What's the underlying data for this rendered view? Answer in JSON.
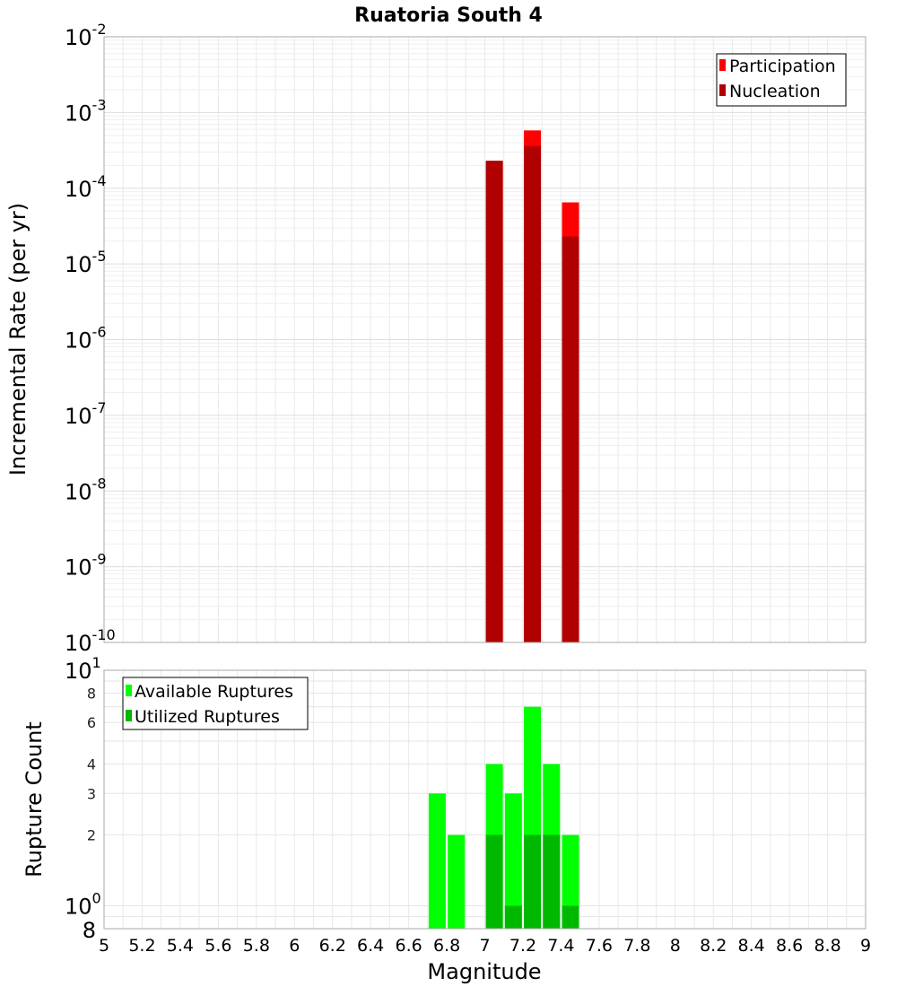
{
  "chart_data": [
    {
      "type": "bar",
      "title": "Ruatoria South 4",
      "ylabel": "Incremental Rate (per yr)",
      "xlabel": "",
      "yscale": "log",
      "ylim": [
        1e-10,
        0.01
      ],
      "xlim": [
        5,
        9
      ],
      "y_ticks": [
        {
          "base": "10",
          "exp": "-10"
        },
        {
          "base": "10",
          "exp": "-9"
        },
        {
          "base": "10",
          "exp": "-8"
        },
        {
          "base": "10",
          "exp": "-7"
        },
        {
          "base": "10",
          "exp": "-6"
        },
        {
          "base": "10",
          "exp": "-5"
        },
        {
          "base": "10",
          "exp": "-4"
        },
        {
          "base": "10",
          "exp": "-3"
        },
        {
          "base": "10",
          "exp": "-2"
        }
      ],
      "legend_position": "top-right",
      "series": [
        {
          "name": "Participation",
          "color": "#ff0000",
          "x": [
            7.05,
            7.25,
            7.45
          ],
          "values": [
            0.00023,
            0.00058,
            6.5e-05
          ]
        },
        {
          "name": "Nucleation",
          "color": "#b00000",
          "x": [
            7.05,
            7.25,
            7.45
          ],
          "values": [
            0.00023,
            0.00036,
            2.3e-05
          ]
        }
      ]
    },
    {
      "type": "bar",
      "title": "",
      "ylabel": "Rupture Count",
      "xlabel": "Magnitude",
      "yscale": "log",
      "ylim": [
        0.8,
        10
      ],
      "xlim": [
        5,
        9
      ],
      "y_ticks_major": [
        {
          "base": "10",
          "exp": "0",
          "value": 1
        },
        {
          "base": "10",
          "exp": "1",
          "value": 10
        }
      ],
      "y_tick_bottom": {
        "label": "8",
        "value": 0.8
      },
      "y_ticks_minor": [
        {
          "label": "2",
          "value": 2
        },
        {
          "label": "3",
          "value": 3
        },
        {
          "label": "4",
          "value": 4
        },
        {
          "label": "6",
          "value": 6
        },
        {
          "label": "8",
          "value": 8
        }
      ],
      "x_ticks": [
        "5",
        "5.2",
        "5.4",
        "5.6",
        "5.8",
        "6",
        "6.2",
        "6.4",
        "6.6",
        "6.8",
        "7",
        "7.2",
        "7.4",
        "7.6",
        "7.8",
        "8",
        "8.2",
        "8.4",
        "8.6",
        "8.8",
        "9"
      ],
      "legend_position": "top-left",
      "series": [
        {
          "name": "Available Ruptures",
          "color": "#00ff00",
          "x": [
            6.75,
            6.85,
            7.05,
            7.15,
            7.25,
            7.35,
            7.45
          ],
          "values": [
            3,
            2,
            4,
            3,
            7,
            4,
            2
          ]
        },
        {
          "name": "Utilized Ruptures",
          "color": "#00b800",
          "x": [
            7.05,
            7.15,
            7.25,
            7.35,
            7.45
          ],
          "values": [
            2,
            1,
            2,
            2,
            1
          ]
        }
      ]
    }
  ]
}
